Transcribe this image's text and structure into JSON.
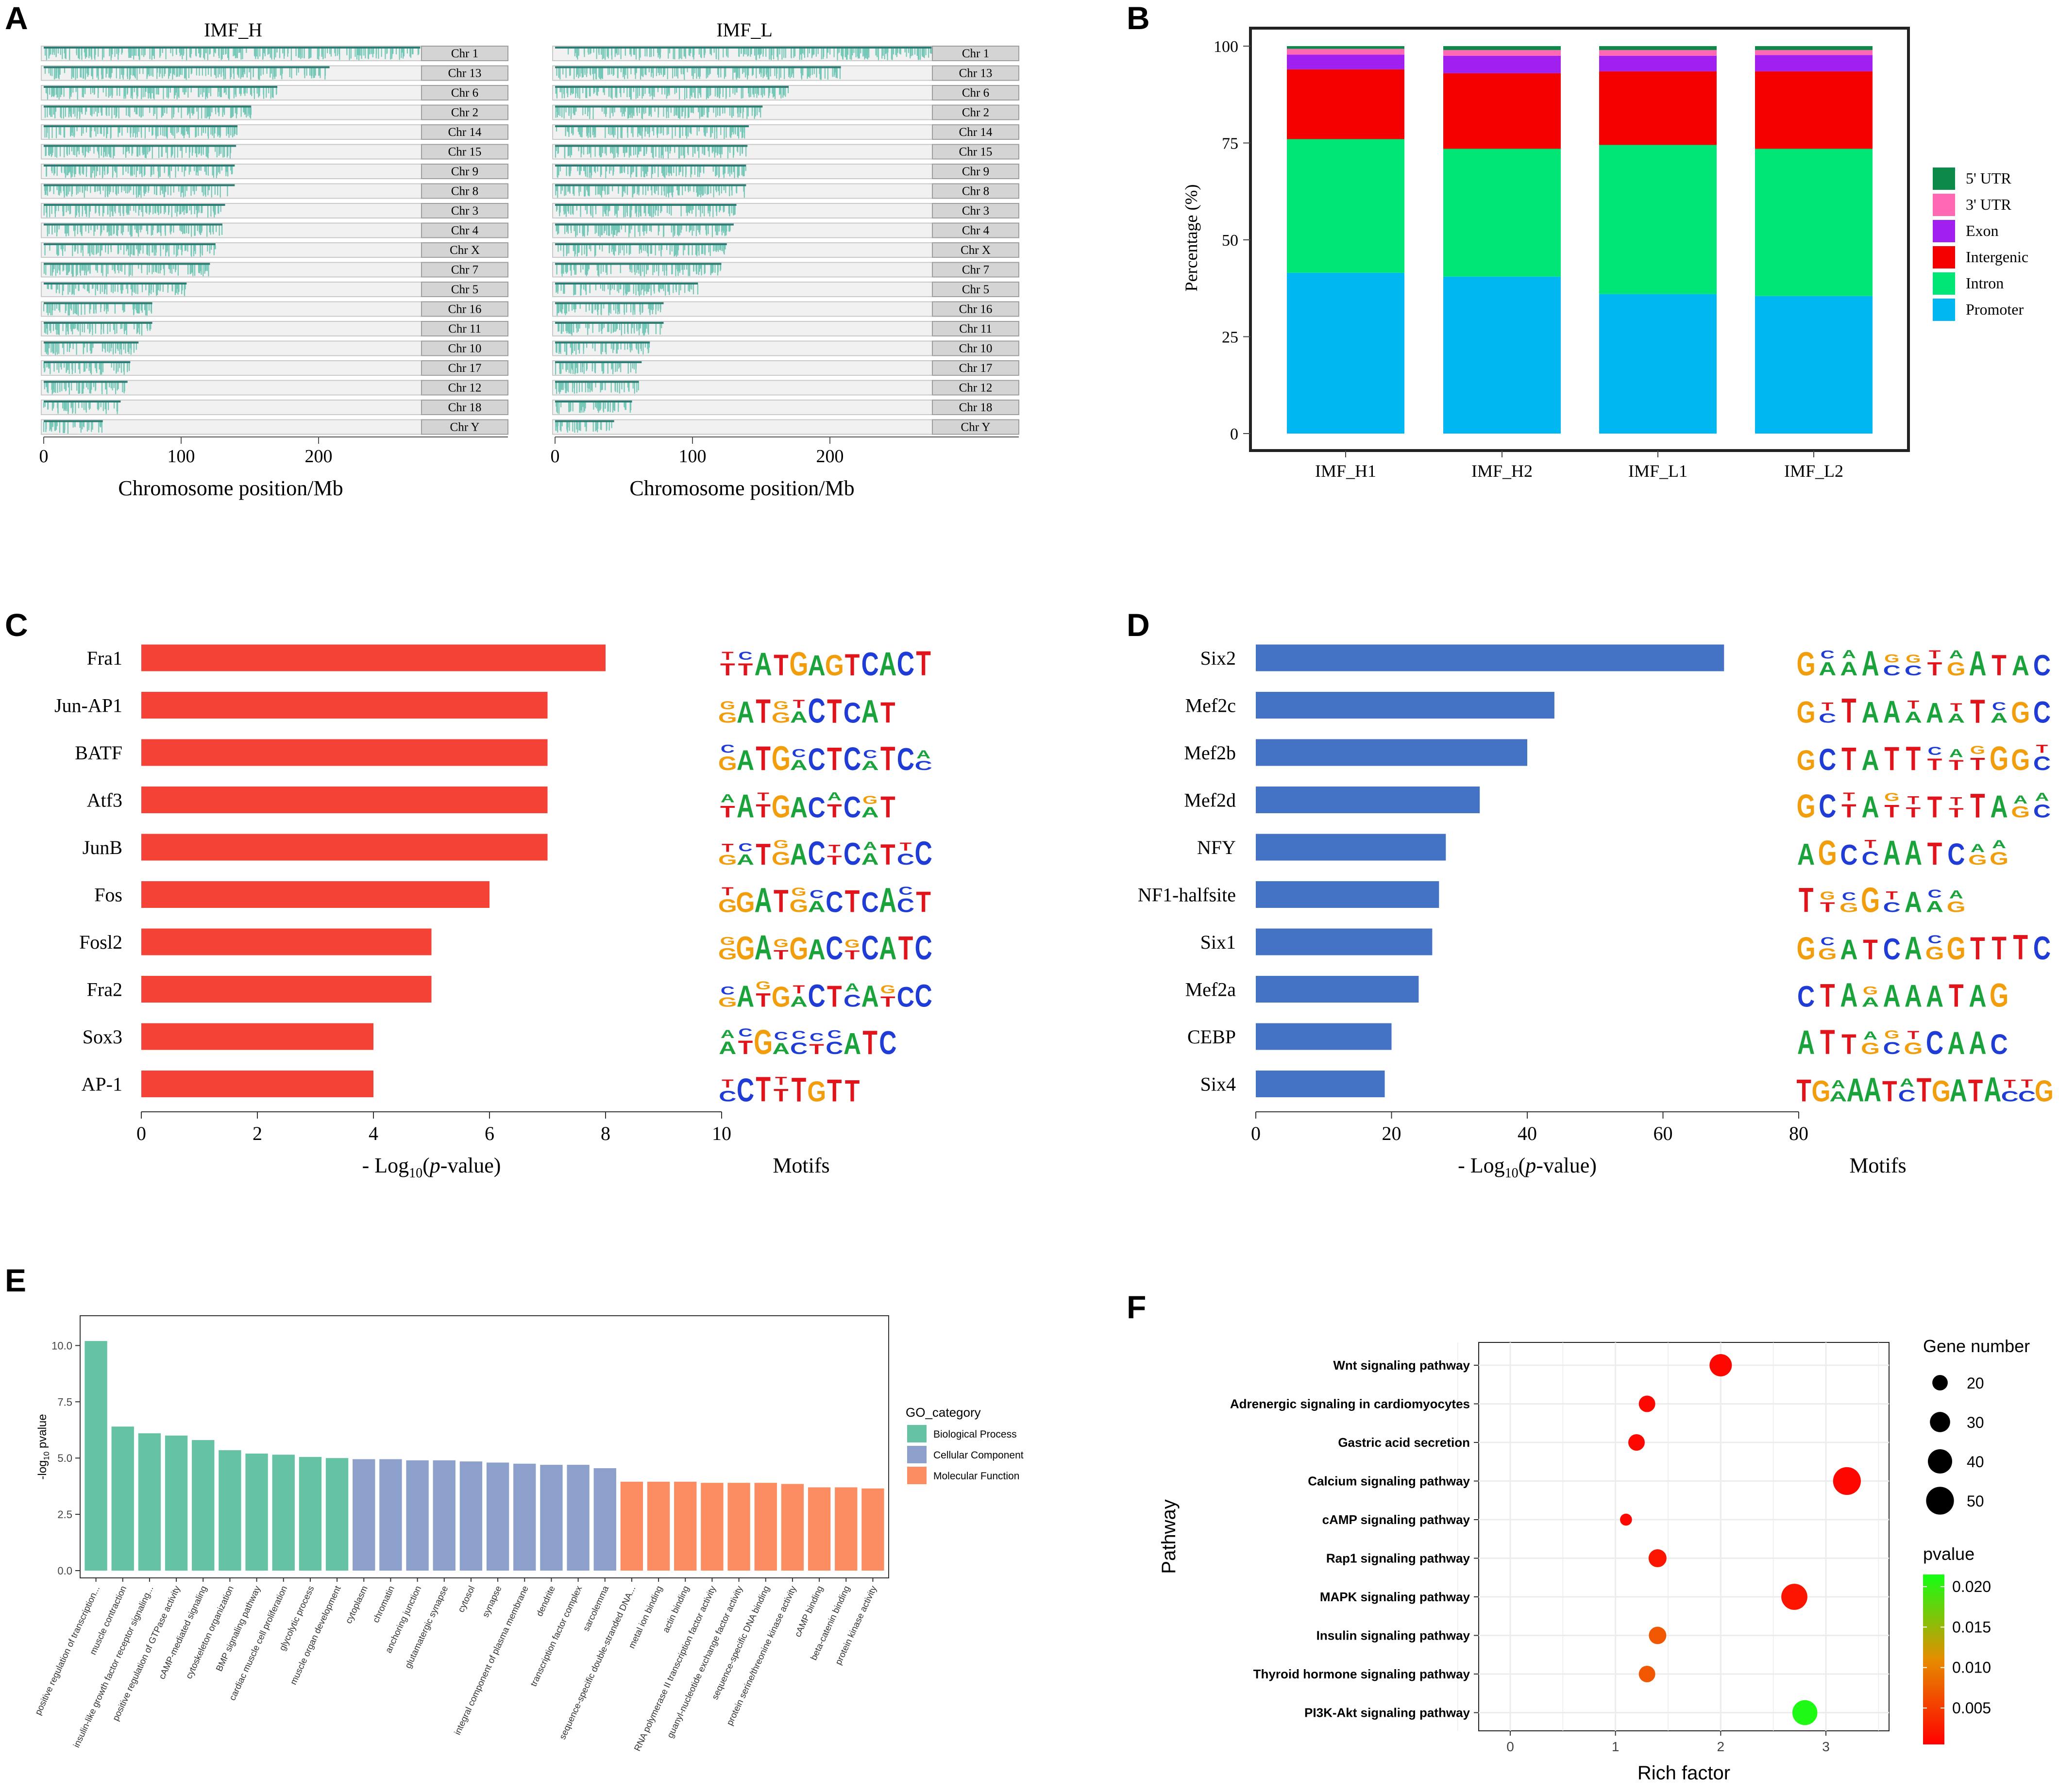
{
  "panel_letters": [
    "A",
    "B",
    "C",
    "D",
    "E",
    "F"
  ],
  "colors": {
    "track": "#f1f1f1",
    "track_stroke": "#c9c9c9",
    "peak": "#5fbfae",
    "peak_dark": "#2e7d74",
    "chr_box": "#d4d4d4",
    "red_bar": "#f44336",
    "blue_bar": "#4472c4",
    "promoter": "#00b7f1",
    "intron": "#00e676",
    "intergenic": "#f40000",
    "exon": "#a020f0",
    "utr3": "#ff69b4",
    "utr5": "#0c8a4a",
    "bio": "#66c2a5",
    "cell": "#8da0cb",
    "mol": "#fc8d62",
    "grid": "#ececec"
  },
  "chart_data": [
    {
      "id": "A",
      "type": "chromosome_peak_map",
      "panels": [
        "IMF_H",
        "IMF_L"
      ],
      "chromosomes": [
        "Chr 1",
        "Chr 13",
        "Chr 6",
        "Chr 2",
        "Chr 14",
        "Chr 15",
        "Chr 9",
        "Chr 8",
        "Chr 3",
        "Chr 4",
        "Chr X",
        "Chr 7",
        "Chr 5",
        "Chr 16",
        "Chr 11",
        "Chr 10",
        "Chr 17",
        "Chr 12",
        "Chr 18",
        "Chr Y"
      ],
      "lengths_mb": [
        274,
        208,
        170,
        151,
        141,
        140,
        139,
        139,
        132,
        130,
        125,
        121,
        104,
        79,
        79,
        69,
        63,
        61,
        56,
        43
      ],
      "xlim": [
        0,
        280
      ],
      "ticks": [
        0,
        100,
        200
      ],
      "xlabel": "Chromosome position/Mb"
    },
    {
      "id": "B",
      "type": "stacked_bar",
      "categories": [
        "IMF_H1",
        "IMF_H2",
        "IMF_L1",
        "IMF_L2"
      ],
      "series": [
        {
          "name": "Promoter",
          "values": [
            41.5,
            40.5,
            36,
            35.5
          ]
        },
        {
          "name": "Intron",
          "values": [
            34.5,
            33,
            38.5,
            38
          ]
        },
        {
          "name": "Intergenic",
          "values": [
            18,
            19.5,
            19,
            20
          ]
        },
        {
          "name": "Exon",
          "values": [
            3.8,
            4.5,
            4,
            4.2
          ]
        },
        {
          "name": "3' UTR",
          "values": [
            1.5,
            1.5,
            1.5,
            1.3
          ]
        },
        {
          "name": "5' UTR",
          "values": [
            0.7,
            1,
            1,
            1
          ]
        }
      ],
      "ylim": [
        0,
        100
      ],
      "ticks": [
        0,
        25,
        50,
        75,
        100
      ],
      "ylabel": "Percentage (%)",
      "xlabel": "",
      "legend_order": [
        "5' UTR",
        "3' UTR",
        "Exon",
        "Intergenic",
        "Intron",
        "Promoter"
      ]
    },
    {
      "id": "C",
      "type": "bar",
      "orientation": "horizontal",
      "categories": [
        "Fra1",
        "Jun-AP1",
        "BATF",
        "Atf3",
        "JunB",
        "Fos",
        "Fosl2",
        "Fra2",
        "Sox3",
        "AP-1"
      ],
      "values": [
        8,
        7,
        7,
        7,
        7,
        6,
        5,
        5,
        4,
        4
      ],
      "xlim": [
        0,
        10
      ],
      "ticks": [
        0,
        2,
        4,
        6,
        8,
        10
      ],
      "xlabel_pre": "- Log",
      "xlabel_sub": "10",
      "xlabel_mid": "(",
      "xlabel_italic": "p",
      "xlabel_post": "-value)",
      "motifs_label": "Motifs",
      "motifs": [
        "TTATGAGTCACT",
        "GATGACTCAT",
        "GATGACTCATCC",
        "TATGACTCAT",
        "GATGACTCATCC",
        "GGATGACTCACT",
        "GGATGACTCATC",
        "GATGACTCATCC",
        "ATGACTCATC",
        "CCTTTGTT"
      ]
    },
    {
      "id": "D",
      "type": "bar",
      "orientation": "horizontal",
      "categories": [
        "Six2",
        "Mef2c",
        "Mef2b",
        "Mef2d",
        "NFY",
        "NF1-halfsite",
        "Six1",
        "Mef2a",
        "CEBP",
        "Six4"
      ],
      "values": [
        69,
        44,
        40,
        33,
        28,
        27,
        26,
        24,
        20,
        19
      ],
      "xlim": [
        0,
        80
      ],
      "ticks": [
        0,
        20,
        40,
        60,
        80
      ],
      "xlabel_pre": "- Log",
      "xlabel_sub": "10",
      "xlabel_mid": "(",
      "xlabel_italic": "p",
      "xlabel_post": "-value)",
      "motifs_label": "Motifs",
      "motifs": [
        "GAAACCTGATAC",
        "GCTAAAAATAGC",
        "GCTATTTTTGGC",
        "GCTATTTTTAGC",
        "AGCCAATCGG",
        "TTGGCAAG",
        "GGATCAGGTTTC",
        "CTAAAAATAG",
        "ATTGCGCAAC",
        "TGAAATCTGATACCG"
      ]
    },
    {
      "id": "E",
      "type": "bar",
      "categories": [
        "positive regulation of transcription...",
        "muscle contraction",
        "insulin-like growth factor receptor signaling...",
        "positive regulation of GTPase activity",
        "cAMP-mediated signaling",
        "cytoskeleton organization",
        "BMP signaling pathway",
        "cardiac muscle cell proliferation",
        "glycolytic process",
        "muscle organ development",
        "cytoplasm",
        "chromatin",
        "anchoring junction",
        "glutamatergic synapse",
        "cytosol",
        "synapse",
        "integral component of plasma membrane",
        "dendrite",
        "transcription factor complex",
        "sarcolemma",
        "sequence-specific double-stranded DNA...",
        "metal ion binding",
        "actin binding",
        "RNA polymerase II transcription factor activity",
        "guanyl-nucleotide exchange factor activity",
        "sequence-specific DNA binding",
        "protein serine/threonine kinase activity",
        "cAMP binding",
        "beta-catenin binding",
        "protein kinase activity"
      ],
      "values": [
        10.2,
        6.4,
        6.1,
        6.0,
        5.8,
        5.35,
        5.2,
        5.15,
        5.05,
        5.0,
        4.95,
        4.95,
        4.9,
        4.9,
        4.85,
        4.8,
        4.75,
        4.7,
        4.7,
        4.55,
        3.95,
        3.95,
        3.95,
        3.9,
        3.9,
        3.9,
        3.85,
        3.7,
        3.7,
        3.65
      ],
      "groups": [
        "Biological Process",
        "Biological Process",
        "Biological Process",
        "Biological Process",
        "Biological Process",
        "Biological Process",
        "Biological Process",
        "Biological Process",
        "Biological Process",
        "Biological Process",
        "Cellular Component",
        "Cellular Component",
        "Cellular Component",
        "Cellular Component",
        "Cellular Component",
        "Cellular Component",
        "Cellular Component",
        "Cellular Component",
        "Cellular Component",
        "Cellular Component",
        "Molecular Function",
        "Molecular Function",
        "Molecular Function",
        "Molecular Function",
        "Molecular Function",
        "Molecular Function",
        "Molecular Function",
        "Molecular Function",
        "Molecular Function",
        "Molecular Function"
      ],
      "ylim": [
        0,
        11
      ],
      "ticks": [
        0.0,
        2.5,
        5.0,
        7.5,
        10.0
      ],
      "tick_labels": [
        "0.0",
        "2.5",
        "5.0",
        "7.5",
        "10.0"
      ],
      "ylabel_pre": "-log",
      "ylabel_sub": "10",
      "ylabel_post": " pvalue",
      "legend_title": "GO_category",
      "legend": [
        "Biological Process",
        "Cellular Component",
        "Molecular Function"
      ]
    },
    {
      "id": "F",
      "type": "scatter",
      "ylabel": "Pathway",
      "xlabel": "Rich factor",
      "xlim": [
        -0.3,
        3.6
      ],
      "ticks": [
        0,
        1,
        2,
        3
      ],
      "pathways": [
        "Wnt signaling pathway",
        "Adrenergic signaling in cardiomyocytes",
        "Gastric acid secretion",
        "Calcium signaling pathway",
        "cAMP signaling pathway",
        "Rap1 signaling pathway",
        "MAPK signaling pathway",
        "Insulin signaling pathway",
        "Thyroid hormone signaling pathway",
        "PI3K-Akt signaling pathway"
      ],
      "rich_factor": [
        2.0,
        1.3,
        1.2,
        3.2,
        1.1,
        1.4,
        2.7,
        1.4,
        1.3,
        2.8
      ],
      "gene_number": [
        35,
        22,
        22,
        50,
        14,
        25,
        45,
        24,
        22,
        42
      ],
      "pvalue": [
        0.001,
        0.001,
        0.001,
        0.001,
        0.001,
        0.002,
        0.002,
        0.007,
        0.007,
        0.021
      ],
      "size_legend_title": "Gene number",
      "size_legend": [
        20,
        30,
        40,
        50
      ],
      "color_legend_title": "pvalue",
      "color_legend_ticks": [
        0.02,
        0.015,
        0.01,
        0.005
      ],
      "color_legend_labels": [
        "0.020",
        "0.015",
        "0.010",
        "0.005"
      ],
      "color_range": [
        0.0005,
        0.0215
      ]
    }
  ]
}
